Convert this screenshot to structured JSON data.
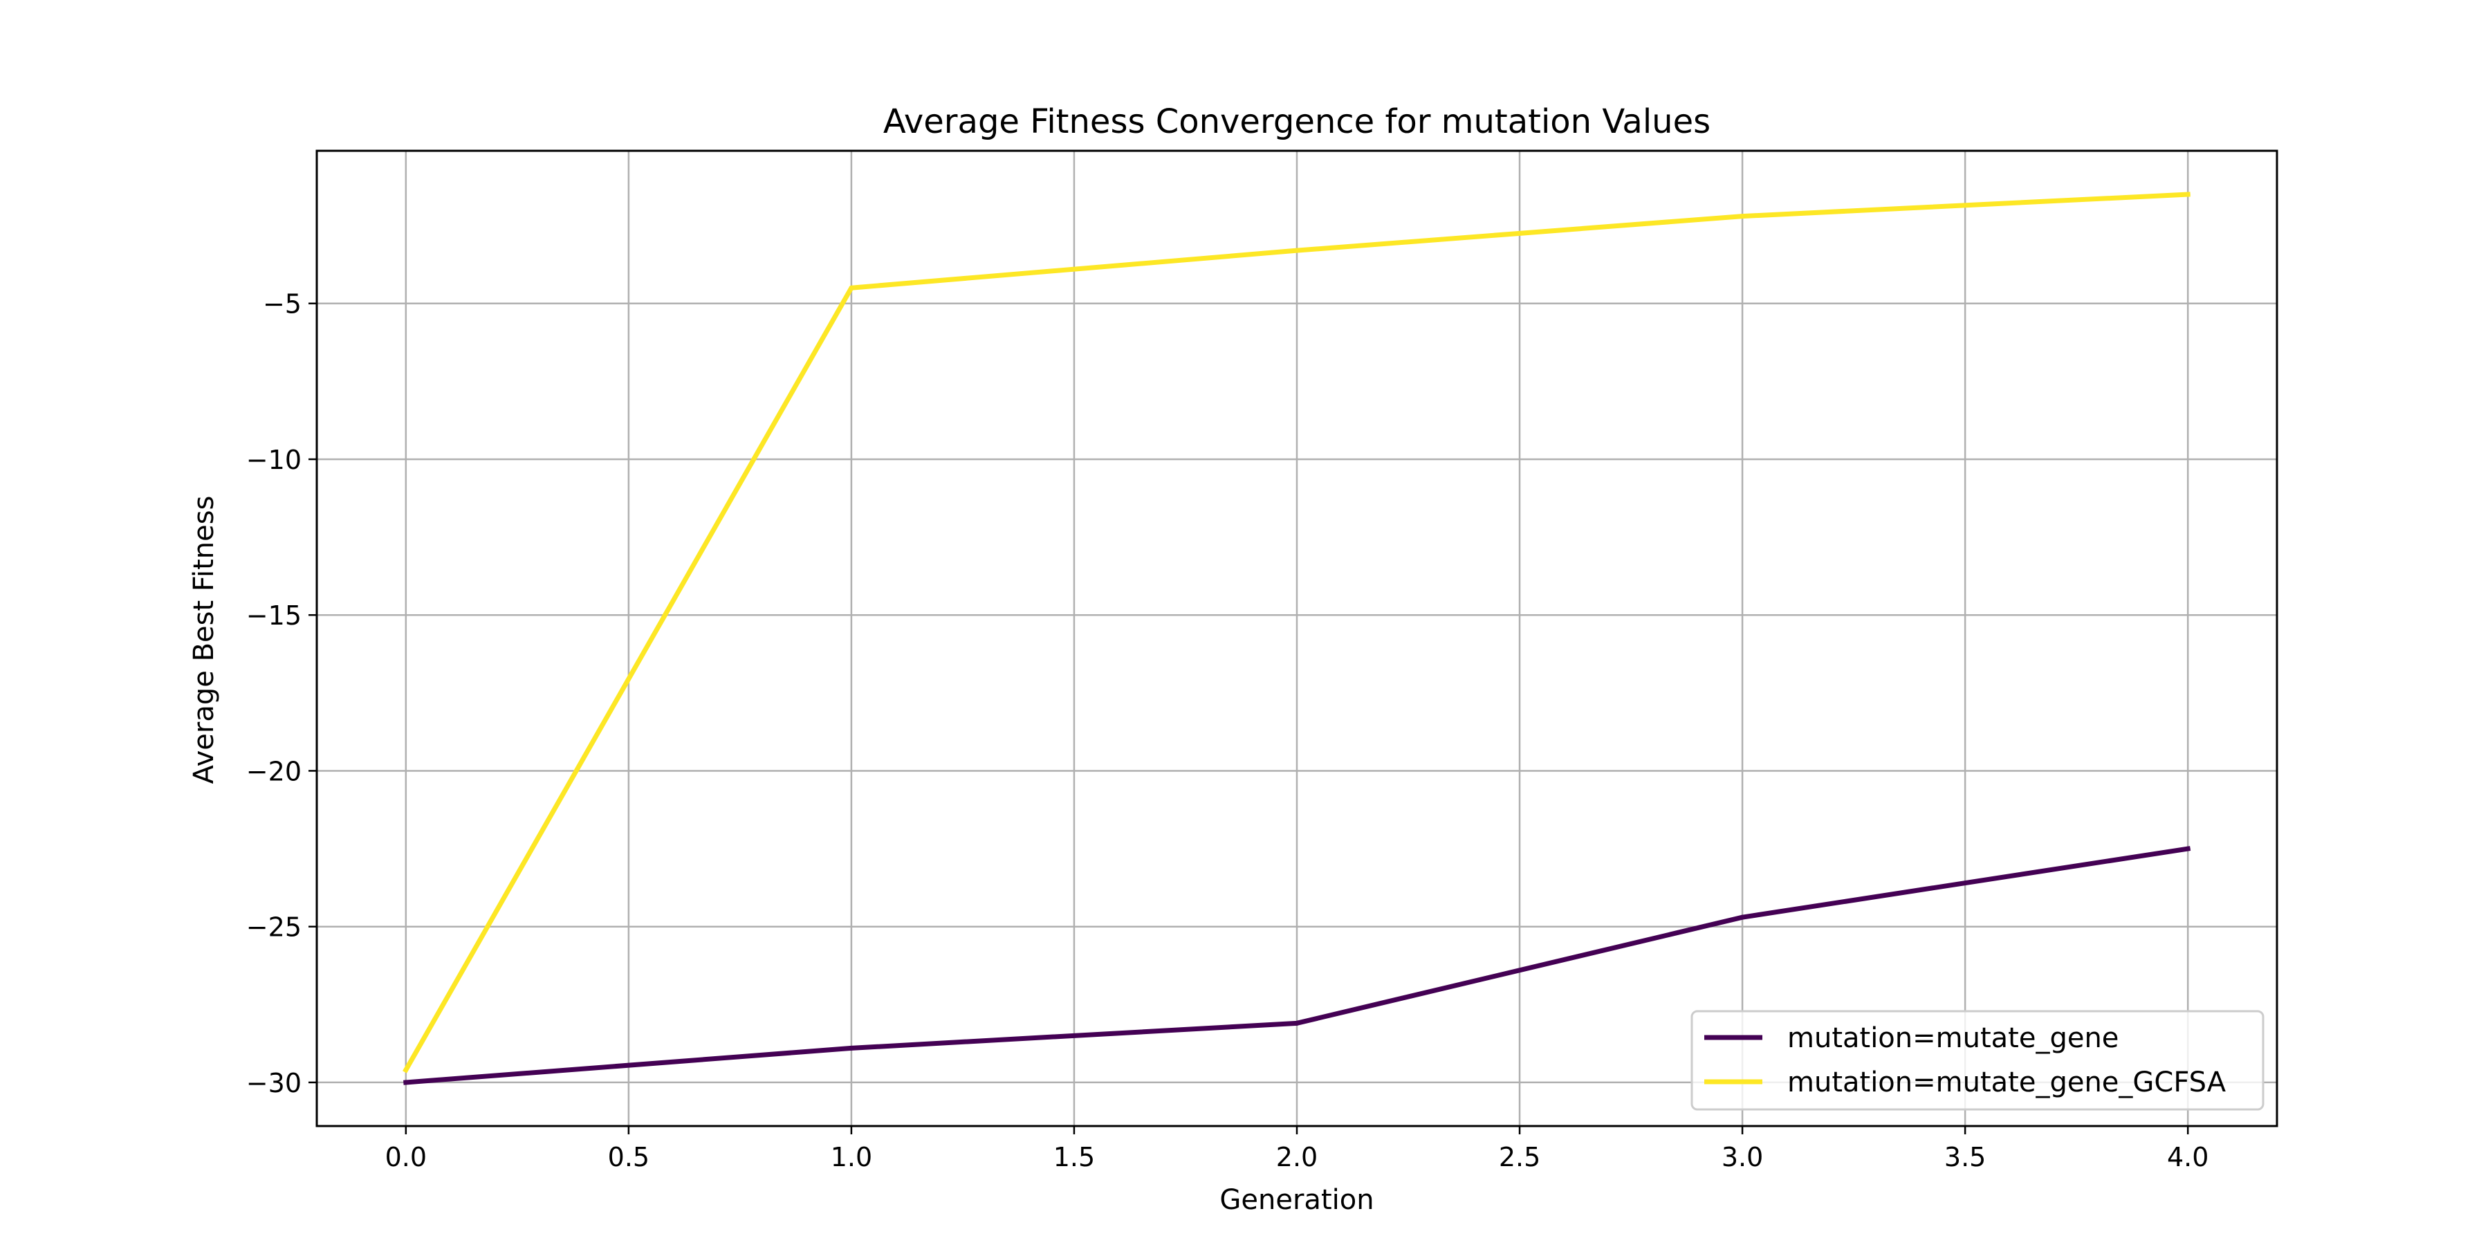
{
  "chart_data": {
    "type": "line",
    "title": "Average Fitness Convergence for mutation Values",
    "xlabel": "Generation",
    "ylabel": "Average Best Fitness",
    "x": [
      0,
      1,
      2,
      3,
      4
    ],
    "xlim": [
      -0.2,
      4.2
    ],
    "ylim": [
      -31.4,
      -0.1
    ],
    "xticks": [
      0.0,
      0.5,
      1.0,
      1.5,
      2.0,
      2.5,
      3.0,
      3.5,
      4.0
    ],
    "xtick_labels": [
      "0.0",
      "0.5",
      "1.0",
      "1.5",
      "2.0",
      "2.5",
      "3.0",
      "3.5",
      "4.0"
    ],
    "yticks": [
      -5,
      -10,
      -15,
      -20,
      -25,
      -30
    ],
    "ytick_labels": [
      "−5",
      "−10",
      "−15",
      "−20",
      "−25",
      "−30"
    ],
    "grid": true,
    "legend_position": "lower-right",
    "series": [
      {
        "name": "mutation=mutate_gene",
        "color": "#440154",
        "values": [
          -30.0,
          -28.9,
          -28.1,
          -24.7,
          -22.5
        ]
      },
      {
        "name": "mutation=mutate_gene_GCFSA",
        "color": "#fde725",
        "values": [
          -29.6,
          -4.5,
          -3.3,
          -2.2,
          -1.5
        ]
      }
    ]
  }
}
